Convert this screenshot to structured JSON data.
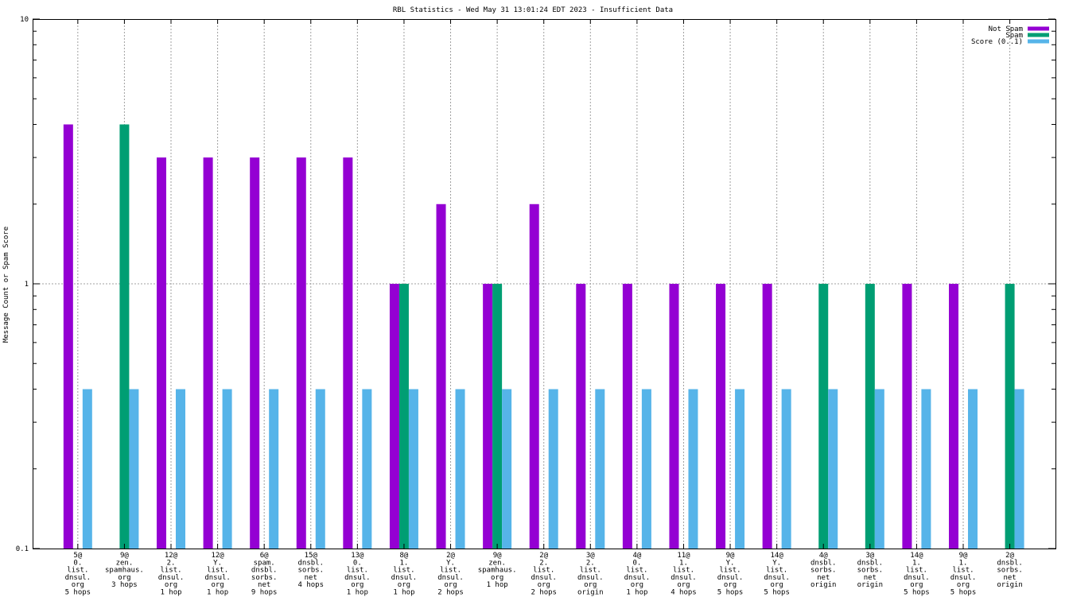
{
  "chart_data": {
    "type": "bar",
    "title": "RBL Statistics - Wed May 31 13:01:24 EDT 2023 - Insufficient Data",
    "xlabel": "",
    "ylabel": "Message Count or Spam Score",
    "yscale": "log",
    "ylim": [
      0.1,
      10
    ],
    "yticks": [
      {
        "value": 0.1,
        "label": "0.1"
      },
      {
        "value": 1,
        "label": "1"
      },
      {
        "value": 10,
        "label": "10"
      }
    ],
    "grid": true,
    "legend_position": "top-right",
    "categories": [
      [
        "5@",
        "0.",
        "list.",
        "dnsul.",
        "org",
        "5 hops"
      ],
      [
        "9@",
        "zen.",
        "spamhaus.",
        "org",
        "3 hops"
      ],
      [
        "12@",
        "2.",
        "list.",
        "dnsul.",
        "org",
        "1 hop"
      ],
      [
        "12@",
        "Y.",
        "list.",
        "dnsul.",
        "org",
        "1 hop"
      ],
      [
        "6@",
        "spam.",
        "dnsbl.",
        "sorbs.",
        "net",
        "9 hops"
      ],
      [
        "15@",
        "dnsbl.",
        "sorbs.",
        "net",
        "4 hops"
      ],
      [
        "13@",
        "0.",
        "list.",
        "dnsul.",
        "org",
        "1 hop"
      ],
      [
        "8@",
        "1.",
        "list.",
        "dnsul.",
        "org",
        "1 hop"
      ],
      [
        "2@",
        "Y.",
        "list.",
        "dnsul.",
        "org",
        "2 hops"
      ],
      [
        "9@",
        "zen.",
        "spamhaus.",
        "org",
        "1 hop"
      ],
      [
        "2@",
        "2.",
        "list.",
        "dnsul.",
        "org",
        "2 hops"
      ],
      [
        "3@",
        "2.",
        "list.",
        "dnsul.",
        "org",
        "origin"
      ],
      [
        "4@",
        "0.",
        "list.",
        "dnsul.",
        "org",
        "1 hop"
      ],
      [
        "11@",
        "1.",
        "list.",
        "dnsul.",
        "org",
        "4 hops"
      ],
      [
        "9@",
        "Y.",
        "list.",
        "dnsul.",
        "org",
        "5 hops"
      ],
      [
        "14@",
        "Y.",
        "list.",
        "dnsul.",
        "org",
        "5 hops"
      ],
      [
        "4@",
        "dnsbl.",
        "sorbs.",
        "net",
        "origin"
      ],
      [
        "3@",
        "dnsbl.",
        "sorbs.",
        "net",
        "origin"
      ],
      [
        "14@",
        "1.",
        "list.",
        "dnsul.",
        "org",
        "5 hops"
      ],
      [
        "9@",
        "1.",
        "list.",
        "dnsul.",
        "org",
        "5 hops"
      ],
      [
        "2@",
        "dnsbl.",
        "sorbs.",
        "net",
        "origin"
      ]
    ],
    "series": [
      {
        "name": "Not Spam",
        "color": "#9400d3",
        "values": [
          4,
          null,
          3,
          3,
          3,
          3,
          3,
          1,
          2,
          1,
          2,
          1,
          1,
          1,
          1,
          1,
          null,
          null,
          1,
          1,
          null
        ]
      },
      {
        "name": "Spam",
        "color": "#009e73",
        "values": [
          null,
          4,
          null,
          null,
          null,
          null,
          null,
          1,
          null,
          1,
          null,
          null,
          null,
          null,
          null,
          null,
          1,
          1,
          null,
          null,
          1
        ]
      },
      {
        "name": "Score (0..1)",
        "color": "#56b4e9",
        "values": [
          0.4,
          0.4,
          0.4,
          0.4,
          0.4,
          0.4,
          0.4,
          0.4,
          0.4,
          0.4,
          0.4,
          0.4,
          0.4,
          0.4,
          0.4,
          0.4,
          0.4,
          0.4,
          0.4,
          0.4,
          0.4
        ]
      }
    ]
  }
}
